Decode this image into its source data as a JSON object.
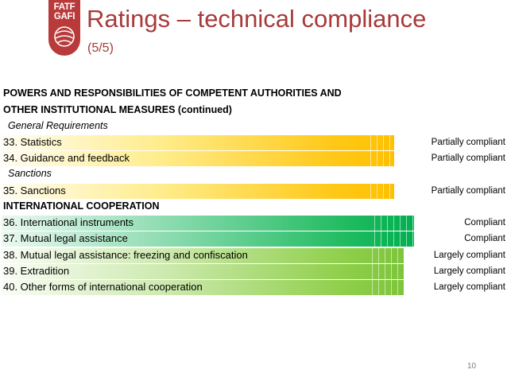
{
  "logo": {
    "line1": "FATF",
    "line2": "GAFI"
  },
  "title": "Ratings – technical compliance",
  "subtitle": "(5/5)",
  "section1": {
    "heading_line1": "POWERS AND RESPONSIBILITIES OF COMPETENT AUTHORITIES AND",
    "heading_line2": "OTHER INSTITUTIONAL MEASURES (continued)",
    "sub1": "General Requirements",
    "sub2": "Sanctions"
  },
  "section2": {
    "heading": "INTERNATIONAL COOPERATION"
  },
  "rows": [
    {
      "label": "33. Statistics",
      "rating": "Partially compliant"
    },
    {
      "label": "34. Guidance and feedback",
      "rating": "Partially compliant"
    },
    {
      "label": "35. Sanctions",
      "rating": "Partially compliant"
    },
    {
      "label": "36. International instruments",
      "rating": "Compliant"
    },
    {
      "label": "37. Mutual legal assistance",
      "rating": "Compliant"
    },
    {
      "label": "38. Mutual legal assistance: freezing and confiscation",
      "rating": "Largely compliant"
    },
    {
      "label": "39. Extradition",
      "rating": "Largely compliant"
    },
    {
      "label": "40. Other forms of international cooperation",
      "rating": "Largely compliant"
    }
  ],
  "colors": {
    "partially_compliant": "#ffc000",
    "compliant": "#00b050",
    "largely_compliant": "#92d050",
    "title": "#a83a3a"
  },
  "page_number": "10"
}
